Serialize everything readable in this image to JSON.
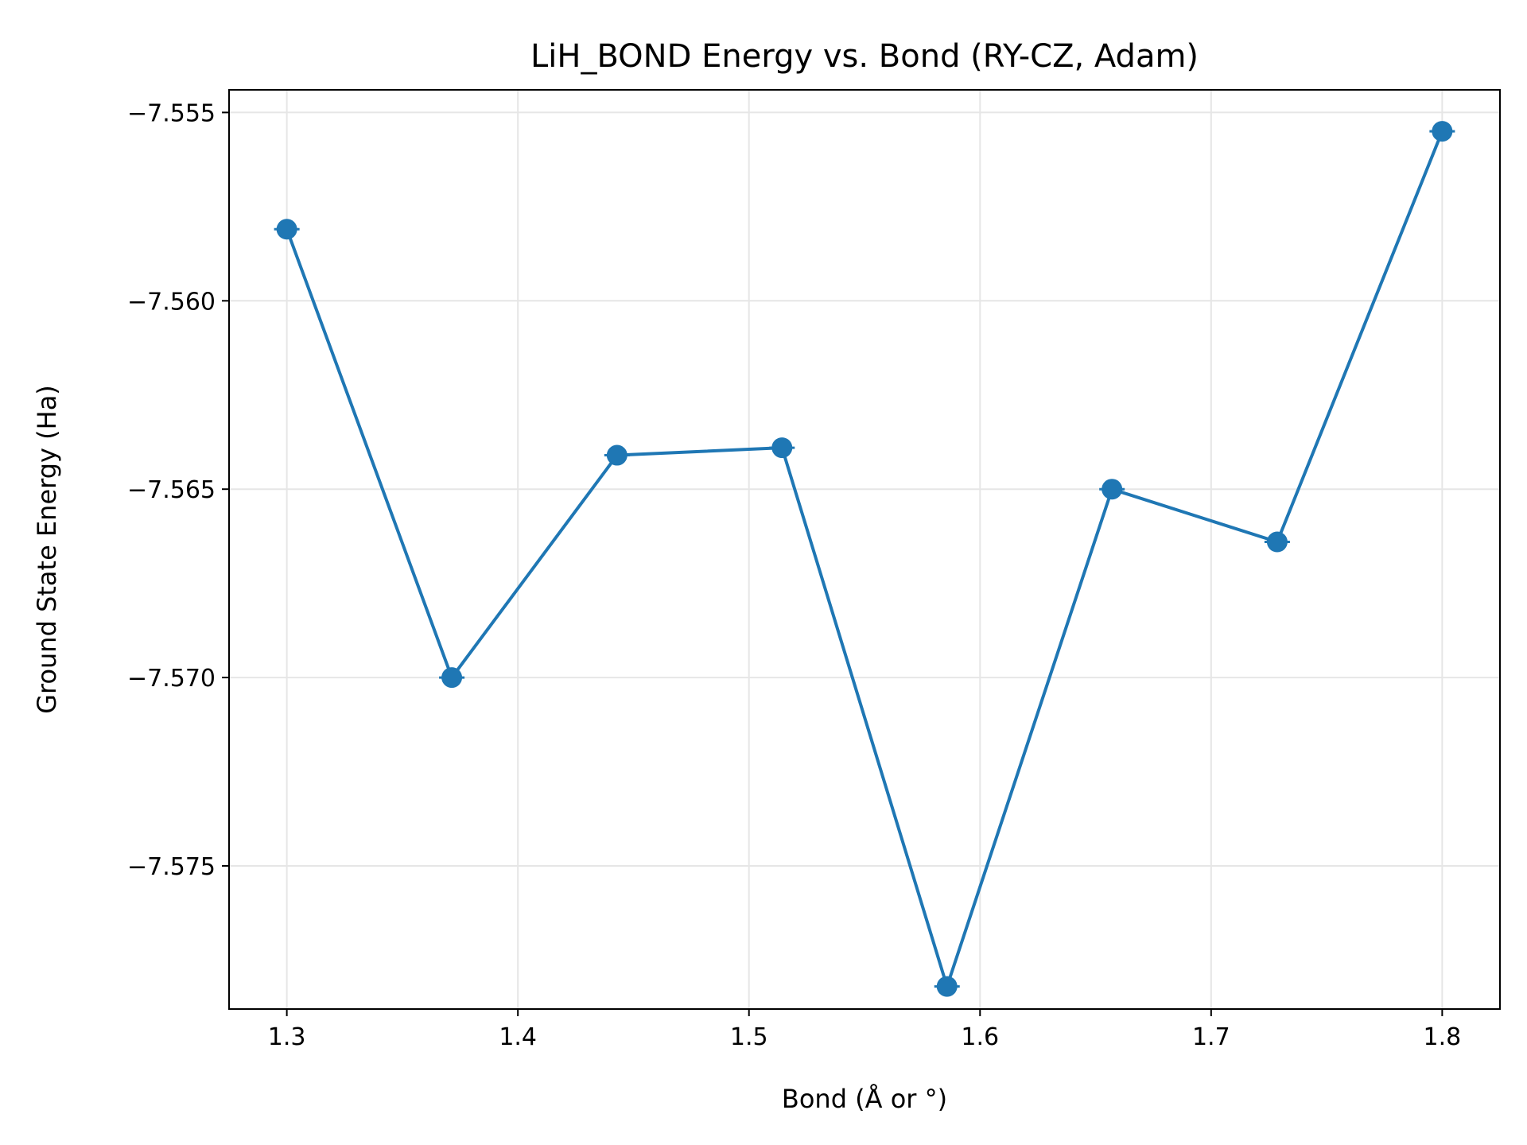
{
  "chart_data": {
    "type": "line",
    "title": "LiH_BOND Energy vs. Bond (RY-CZ, Adam)",
    "xlabel": "Bond (Å or °)",
    "ylabel": "Ground State Energy (Ha)",
    "x": [
      1.3,
      1.3714,
      1.4429,
      1.5143,
      1.5857,
      1.6571,
      1.7286,
      1.8
    ],
    "series": [
      {
        "values": [
          -7.5581,
          -7.57,
          -7.5641,
          -7.5639,
          -7.5782,
          -7.565,
          -7.5664,
          -7.5555
        ],
        "color": "#1f77b4",
        "marker": "circle"
      }
    ],
    "xticks": [
      1.3,
      1.4,
      1.5,
      1.6,
      1.7,
      1.8
    ],
    "xtick_labels": [
      "1.3",
      "1.4",
      "1.5",
      "1.6",
      "1.7",
      "1.8"
    ],
    "yticks": [
      -7.555,
      -7.56,
      -7.565,
      -7.57,
      -7.575
    ],
    "ytick_labels": [
      "−7.555",
      "−7.560",
      "−7.565",
      "−7.570",
      "−7.575"
    ],
    "xlim": [
      1.275,
      1.825
    ],
    "ylim": [
      -7.5788,
      -7.5544
    ],
    "grid": true,
    "colors": {
      "line": "#1f77b4",
      "grid": "#e6e6e6",
      "axes": "#000000"
    }
  }
}
